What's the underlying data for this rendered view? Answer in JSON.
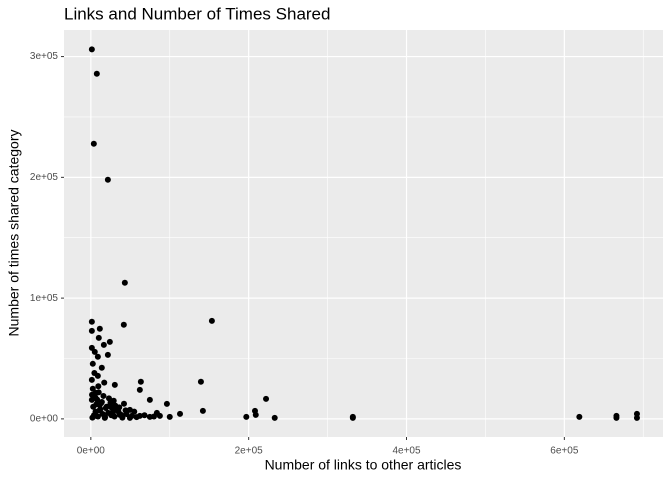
{
  "chart_data": {
    "type": "scatter",
    "title": "Links and Number of Times Shared",
    "x_label": "Number of links to other articles",
    "y_label": "Number of times shared category",
    "color": "#000000",
    "grid": true,
    "xlim": [
      -34000,
      725000
    ],
    "ylim": [
      -15000,
      322000
    ],
    "xticks": [
      {
        "value": 0,
        "label": "0e+00"
      },
      {
        "value": 200000,
        "label": "2e+05"
      },
      {
        "value": 400000,
        "label": "4e+05"
      },
      {
        "value": 600000,
        "label": "6e+05"
      }
    ],
    "yticks": [
      {
        "value": 0,
        "label": "0e+00"
      },
      {
        "value": 100000,
        "label": "1e+05"
      },
      {
        "value": 200000,
        "label": "2e+05"
      },
      {
        "value": 300000,
        "label": "3e+05"
      }
    ],
    "x": [
      1300,
      7600,
      3800,
      21600,
      43100,
      153400,
      41800,
      1300,
      1300,
      11400,
      24100,
      10100,
      16500,
      1300,
      5000,
      21600,
      8900,
      2500,
      13900,
      8900,
      1300,
      30400,
      63400,
      139500,
      222000,
      62100,
      6300,
      74800,
      142000,
      208000,
      209000,
      197000,
      233000,
      332000,
      332000,
      619000,
      666000,
      666000,
      692000,
      692000,
      96400,
      100000,
      113000,
      83700,
      49500,
      26600,
      11400,
      1300,
      36800,
      62100,
      74800,
      87500,
      17700,
      5000,
      49500,
      2000,
      4000,
      6000,
      9000,
      12000,
      15000,
      18000,
      22000,
      26000,
      30000,
      35000,
      40000,
      45000,
      52000,
      58000,
      3000,
      7000,
      11000,
      14000,
      19000,
      24000,
      28000,
      33000,
      38000,
      44000,
      1500,
      2500,
      5500,
      8000,
      10000,
      13000,
      16000,
      20000,
      25000,
      31000,
      4500,
      9500,
      17000,
      23000,
      29000,
      36000,
      42000,
      55000,
      68000,
      80000
    ],
    "values": [
      306000,
      285800,
      227800,
      198000,
      112700,
      81200,
      77900,
      80400,
      72900,
      74600,
      63800,
      67100,
      61300,
      58800,
      55500,
      53000,
      51400,
      45600,
      42300,
      35600,
      32300,
      28200,
      30700,
      30700,
      16600,
      24000,
      21500,
      15700,
      6600,
      6600,
      3300,
      1700,
      800,
      1700,
      800,
      1700,
      2500,
      800,
      4100,
      800,
      12400,
      1700,
      4100,
      5000,
      7500,
      9100,
      11600,
      15700,
      3300,
      2500,
      1700,
      2500,
      800,
      2500,
      800,
      1000,
      3000,
      6000,
      2000,
      8000,
      4000,
      1500,
      5000,
      3000,
      2000,
      6000,
      1000,
      4000,
      2500,
      1500,
      10000,
      12000,
      7000,
      14000,
      9000,
      11000,
      5500,
      8500,
      3500,
      7000,
      20000,
      25000,
      18000,
      16000,
      22000,
      13000,
      19000,
      10000,
      13500,
      11000,
      38000,
      27000,
      30000,
      17000,
      15000,
      9500,
      12500,
      6000,
      3000,
      2000
    ]
  }
}
